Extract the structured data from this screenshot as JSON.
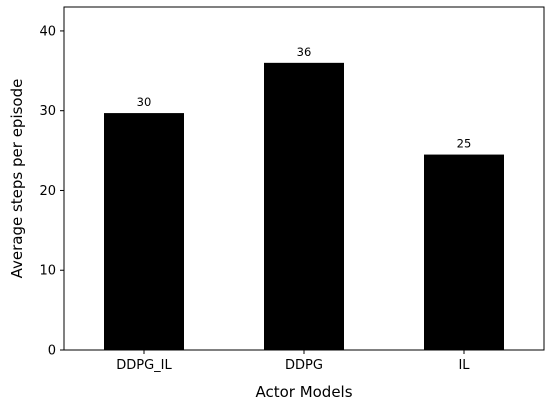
{
  "chart_data": {
    "type": "bar",
    "title": "",
    "xlabel": "Actor Models",
    "ylabel": "Average steps per episode",
    "categories": [
      "DDPG_IL",
      "DDPG",
      "IL"
    ],
    "values": [
      29.7,
      36.0,
      24.5
    ],
    "data_labels": [
      "30",
      "36",
      "25"
    ],
    "ylim": [
      0,
      43
    ],
    "yticks": [
      0,
      10,
      20,
      30,
      40
    ],
    "bar_color": "#000000",
    "grid": false,
    "legend": "none"
  }
}
